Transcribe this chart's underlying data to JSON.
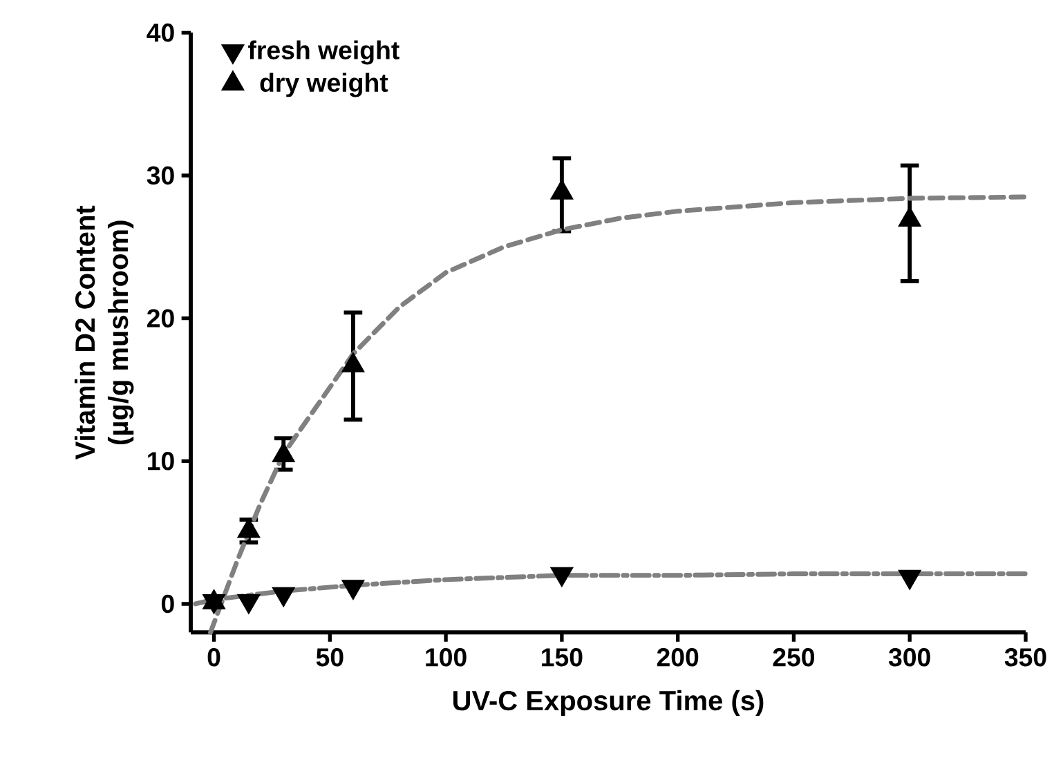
{
  "chart_data": {
    "type": "scatter",
    "xlabel": "UV-C Exposure Time (s)",
    "ylabel": "Vitamin D2 Content\n(µg/g mushroom)",
    "xlim": [
      -10,
      350
    ],
    "ylim": [
      -2,
      40
    ],
    "xticks": [
      0,
      50,
      100,
      150,
      200,
      250,
      300,
      350
    ],
    "yticks": [
      0,
      10,
      20,
      30,
      40
    ],
    "legend": "top left",
    "grid": false,
    "series": [
      {
        "name": "fresh weight",
        "marker": "triangle-down",
        "color": "#000000",
        "x": [
          0,
          15,
          30,
          60,
          150,
          300
        ],
        "values": [
          0.2,
          0.2,
          0.7,
          1.2,
          2.1,
          1.9
        ]
      },
      {
        "name": "dry weight",
        "marker": "triangle",
        "color": "#000000",
        "x": [
          0,
          15,
          30,
          60,
          150,
          300
        ],
        "values": [
          0.1,
          5.1,
          10.4,
          16.7,
          28.8,
          26.9
        ],
        "errors": [
          null,
          [
            4.3,
            5.9
          ],
          [
            9.4,
            11.6
          ],
          [
            12.9,
            20.4
          ],
          [
            26.1,
            31.2
          ],
          [
            22.6,
            30.7
          ]
        ]
      },
      {
        "type": "line",
        "line_style": "dashed",
        "marker": "none",
        "color": "#808080",
        "x": [
          -1.5,
          10,
          20,
          30,
          45,
          60,
          80,
          100,
          125,
          150,
          175,
          200,
          250,
          300,
          350
        ],
        "values": [
          -2,
          3,
          7,
          10.5,
          14,
          17.5,
          20.8,
          23.2,
          25,
          26.2,
          27,
          27.5,
          28.1,
          28.4,
          28.5
        ]
      },
      {
        "type": "line",
        "line_style": "dashdot",
        "marker": "none",
        "color": "#808080",
        "x": [
          -8,
          0,
          30,
          60,
          100,
          150,
          200,
          250,
          300,
          350
        ],
        "values": [
          0,
          0.3,
          0.9,
          1.3,
          1.7,
          2,
          2,
          2.1,
          2.1,
          2.1
        ]
      }
    ]
  }
}
